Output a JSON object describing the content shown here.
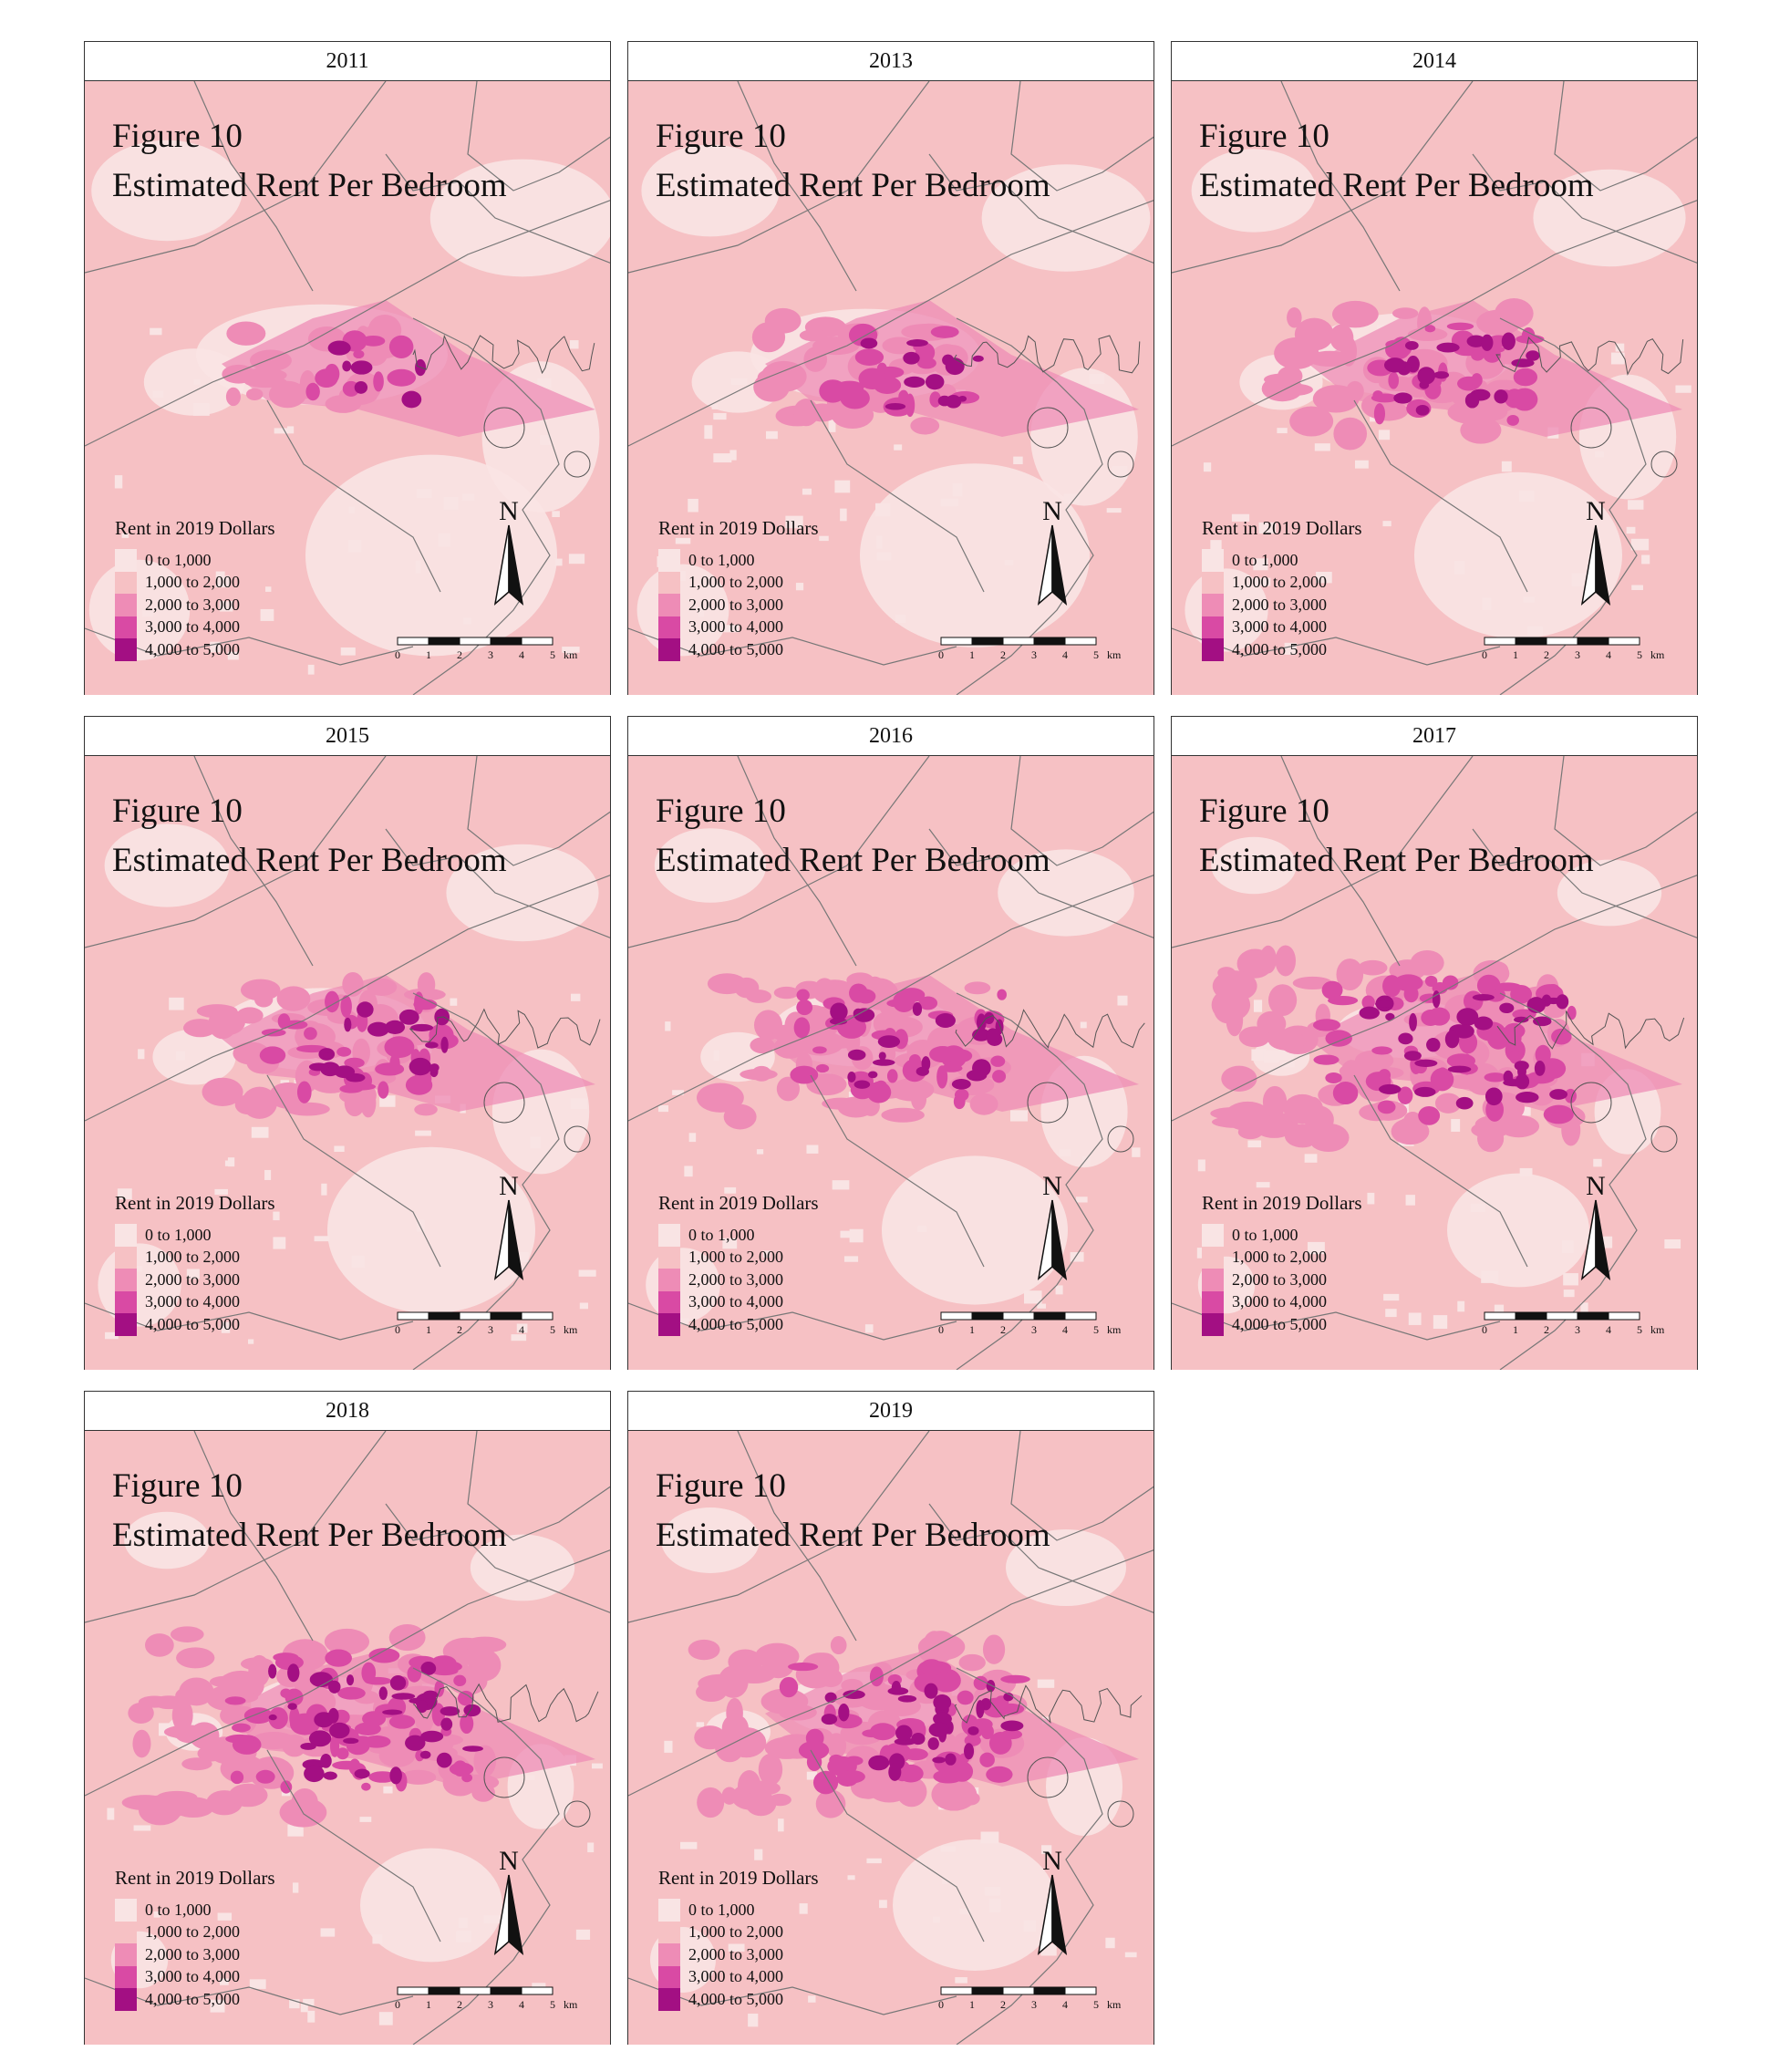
{
  "figure_title_line1": "Figure 10",
  "figure_title_line2": "Estimated Rent Per Bedroom",
  "legend": {
    "title": "Rent in 2019 Dollars",
    "classes": [
      {
        "label": "0 to 1,000",
        "color": "#f9e4e4"
      },
      {
        "label": "1,000 to 2,000",
        "color": "#f6c1c4"
      },
      {
        "label": "2,000 to 3,000",
        "color": "#ee8cb6"
      },
      {
        "label": "3,000 to 4,000",
        "color": "#d94aa4"
      },
      {
        "label": "4,000 to 5,000",
        "color": "#a30f83"
      }
    ]
  },
  "north_label": "N",
  "scale": {
    "ticks": [
      "0",
      "1",
      "2",
      "3",
      "4",
      "5"
    ],
    "unit": "km"
  },
  "panels": [
    {
      "year": "2011",
      "intensity": 1
    },
    {
      "year": "2013",
      "intensity": 2
    },
    {
      "year": "2014",
      "intensity": 3
    },
    {
      "year": "2015",
      "intensity": 3
    },
    {
      "year": "2016",
      "intensity": 4
    },
    {
      "year": "2017",
      "intensity": 6
    },
    {
      "year": "2018",
      "intensity": 6
    },
    {
      "year": "2019",
      "intensity": 5
    }
  ]
}
